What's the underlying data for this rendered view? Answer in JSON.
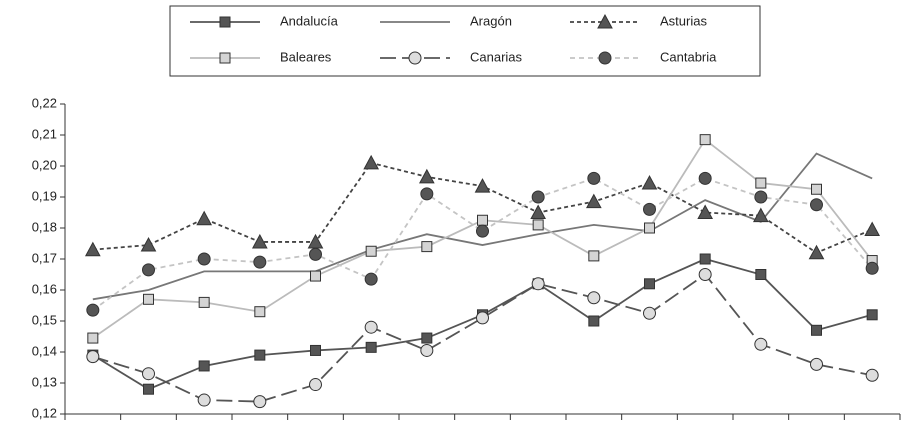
{
  "chart_data": {
    "type": "line",
    "categories": [
      null,
      null,
      null,
      null,
      null,
      null,
      null,
      null,
      null,
      null,
      null,
      null,
      null,
      null,
      null
    ],
    "series": [
      {
        "name": "Andalucía",
        "color": "#555555",
        "marker": "square",
        "marker_fill": "#555555",
        "dash": "none",
        "values": [
          0.139,
          0.128,
          0.1355,
          0.139,
          0.1405,
          0.1415,
          0.1445,
          0.152,
          0.162,
          0.15,
          0.162,
          0.17,
          0.165,
          0.147,
          0.152
        ]
      },
      {
        "name": "Aragón",
        "color": "#777777",
        "marker": "none",
        "marker_fill": "#777777",
        "dash": "none",
        "values": [
          0.157,
          0.16,
          0.166,
          0.166,
          0.166,
          0.173,
          0.178,
          0.1745,
          0.178,
          0.181,
          0.179,
          0.189,
          0.182,
          0.204,
          0.196
        ]
      },
      {
        "name": "Asturias",
        "color": "#444444",
        "marker": "triangle",
        "marker_fill": "#555555",
        "dash": "4 3",
        "values": [
          0.173,
          0.1745,
          0.183,
          0.1755,
          0.1755,
          0.201,
          0.1965,
          0.1935,
          0.185,
          0.1885,
          0.1945,
          0.185,
          0.184,
          0.172,
          0.1795
        ]
      },
      {
        "name": "Baleares",
        "color": "#bbbbbb",
        "marker": "square",
        "marker_fill": "#d4d4d4",
        "dash": "none",
        "values": [
          0.1445,
          0.157,
          0.156,
          0.153,
          0.1645,
          0.1725,
          0.174,
          0.1825,
          0.181,
          0.171,
          0.18,
          0.2085,
          0.1945,
          0.1925,
          0.1695
        ]
      },
      {
        "name": "Canarias",
        "color": "#555555",
        "marker": "circle",
        "marker_fill": "#dddddd",
        "dash": "16 6",
        "values": [
          0.1385,
          0.133,
          0.1245,
          0.124,
          0.1295,
          0.148,
          0.1405,
          0.151,
          0.162,
          0.1575,
          0.1525,
          0.165,
          0.1425,
          0.136,
          0.1325
        ]
      },
      {
        "name": "Cantabria",
        "color": "#c4c4c4",
        "marker": "circle",
        "marker_fill": "#555555",
        "dash": "5 4",
        "values": [
          0.1535,
          0.1665,
          0.17,
          0.169,
          0.1715,
          0.1635,
          0.191,
          0.179,
          0.19,
          0.196,
          0.186,
          0.196,
          0.19,
          0.1875,
          0.167
        ]
      }
    ],
    "ylim": [
      0.12,
      0.22
    ],
    "yticks": [
      {
        "value": 0.12,
        "label": "0,12"
      },
      {
        "value": 0.13,
        "label": "0,13"
      },
      {
        "value": 0.14,
        "label": "0,14"
      },
      {
        "value": 0.15,
        "label": "0,15"
      },
      {
        "value": 0.16,
        "label": "0,16"
      },
      {
        "value": 0.17,
        "label": "0,17"
      },
      {
        "value": 0.18,
        "label": "0,18"
      },
      {
        "value": 0.19,
        "label": "0,19"
      },
      {
        "value": 0.2,
        "label": "0,20"
      },
      {
        "value": 0.21,
        "label": "0,21"
      },
      {
        "value": 0.22,
        "label": "0,22"
      }
    ],
    "legend": "top"
  }
}
